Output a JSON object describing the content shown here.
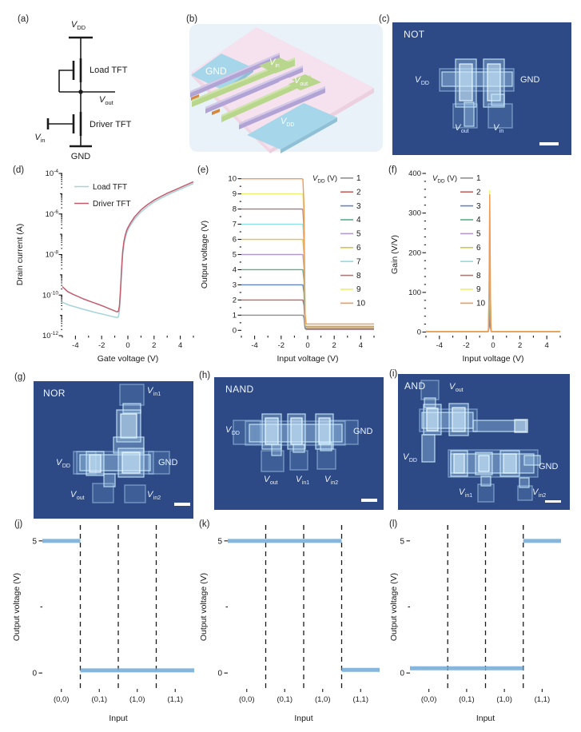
{
  "colors": {
    "micrograph_bg": "#2d4a87",
    "schematic_bg": "#e8f2f8",
    "substrate_pink": "#f6e2ee",
    "electrode_blue": "#a6d6e9",
    "electrode_green": "#b8d68c",
    "semiconductor_purple": "#b2a3d5",
    "step_line_blue": "#79aed7"
  },
  "labels": {
    "v": "V",
    "dd": "DD",
    "out": "out",
    "in": "in",
    "in1": "in1",
    "in2": "in2",
    "gnd": "GND"
  },
  "panels": {
    "a": {
      "tag": "(a)",
      "load": "Load TFT",
      "driver": "Driver TFT",
      "gnd": "GND"
    },
    "b": {
      "tag": "(b)",
      "gnd": "GND"
    },
    "c": {
      "tag": "(c)",
      "title": "NOT"
    },
    "d": {
      "tag": "(d)"
    },
    "e": {
      "tag": "(e)"
    },
    "f": {
      "tag": "(f)"
    },
    "g": {
      "tag": "(g)",
      "title": "NOR"
    },
    "h": {
      "tag": "(h)",
      "title": "NAND"
    },
    "i": {
      "tag": "(i)",
      "title": "AND"
    },
    "j": {
      "tag": "(j)"
    },
    "k": {
      "tag": "(k)"
    },
    "l": {
      "tag": "(l)"
    }
  },
  "chart_data": [
    {
      "id": "d",
      "type": "transfer",
      "xlabel": "Gate voltage (V)",
      "ylabel": "Drain current (A)",
      "xlim": [
        -5,
        5
      ],
      "xticks": [
        -4,
        -2,
        0,
        2,
        4
      ],
      "xminors": [
        -5,
        -3,
        -1,
        1,
        3,
        5
      ],
      "yscale": "log",
      "ylim_exp": [
        -12,
        -4
      ],
      "ytick_base": "10",
      "ytick_exps": [
        -4,
        -6,
        -8,
        -10,
        -12
      ],
      "legend_position": "top-left",
      "series": [
        {
          "name": "Load TFT",
          "color": "#a5d3da",
          "x": [
            -5,
            -4.6,
            -4.2,
            -3.8,
            -3.4,
            -3,
            -2.6,
            -2.2,
            -1.8,
            -1.4,
            -1.1,
            -0.9,
            -0.8,
            -0.72,
            -0.64,
            -0.56,
            -0.48,
            -0.4,
            -0.3,
            -0.2,
            -0.1,
            0,
            0.2,
            0.5,
            1,
            1.5,
            2,
            2.5,
            3,
            3.5,
            4,
            4.5,
            5
          ],
          "y": [
            4.5e-11,
            3.4e-11,
            2.8e-11,
            2.4e-11,
            2e-11,
            1.7e-11,
            1.45e-11,
            1.25e-11,
            1.1e-11,
            9.5e-12,
            8.5e-12,
            8e-12,
            7.8e-12,
            8.5e-12,
            1.8e-11,
            1.2e-10,
            1.3e-09,
            9e-09,
            3.2e-08,
            6.5e-08,
            1.1e-07,
            1.6e-07,
            2.8e-07,
            5.5e-07,
            1.25e-06,
            2.3e-06,
            3.9e-06,
            5.9e-06,
            8.6e-06,
            1.2e-05,
            1.65e-05,
            2.3e-05,
            3.2e-05
          ]
        },
        {
          "name": "Driver TFT",
          "color": "#c25c6e",
          "x": [
            -5,
            -4.6,
            -4.2,
            -3.8,
            -3.4,
            -3,
            -2.6,
            -2.2,
            -1.8,
            -1.4,
            -1.1,
            -0.9,
            -0.8,
            -0.72,
            -0.64,
            -0.56,
            -0.48,
            -0.4,
            -0.3,
            -0.2,
            -0.1,
            0,
            0.2,
            0.5,
            1,
            1.5,
            2,
            2.5,
            3,
            3.5,
            4,
            4.5,
            5
          ],
          "y": [
            2.6e-10,
            1.5e-10,
            1.1e-10,
            8.5e-11,
            6.5e-11,
            5.2e-11,
            4.2e-11,
            3.4e-11,
            2.7e-11,
            2.1e-11,
            1.75e-11,
            1.55e-11,
            1.5e-11,
            1.6e-11,
            3e-11,
            2e-10,
            2e-09,
            1.3e-08,
            4.5e-08,
            9e-08,
            1.5e-07,
            2.1e-07,
            3.6e-07,
            7e-07,
            1.6e-06,
            2.9e-06,
            4.8e-06,
            7.2e-06,
            1.05e-05,
            1.45e-05,
            2e-05,
            2.8e-05,
            3.9e-05
          ]
        }
      ]
    },
    {
      "id": "e",
      "type": "inverter",
      "xlabel": "Input voltage (V)",
      "ylabel": "Output voltage (V)",
      "xlim": [
        -5,
        5
      ],
      "xticks": [
        -4,
        -2,
        0,
        2,
        4
      ],
      "xminors": [
        -5,
        -3,
        -1,
        1,
        3,
        5
      ],
      "ylim": [
        -0.35,
        10.35
      ],
      "yticks": [
        0,
        1,
        2,
        3,
        4,
        5,
        6,
        7,
        8,
        9,
        10
      ],
      "legend_title": {
        "main": "V",
        "sub": "DD",
        "rest": " (V)"
      },
      "transition_x": -0.25,
      "series": [
        {
          "label": "1",
          "vdd": 1,
          "low": 0.06,
          "color": "#8f8f8f"
        },
        {
          "label": "2",
          "vdd": 2,
          "low": 0.08,
          "color": "#c9625f"
        },
        {
          "label": "3",
          "vdd": 3,
          "low": 0.1,
          "color": "#6286c2"
        },
        {
          "label": "4",
          "vdd": 4,
          "low": 0.13,
          "color": "#57b189"
        },
        {
          "label": "5",
          "vdd": 5,
          "low": 0.16,
          "color": "#b49bcd"
        },
        {
          "label": "6",
          "vdd": 6,
          "low": 0.19,
          "color": "#dfc247"
        },
        {
          "label": "7",
          "vdd": 7,
          "low": 0.22,
          "color": "#8fdfe2"
        },
        {
          "label": "8",
          "vdd": 8,
          "low": 0.26,
          "color": "#a87b78"
        },
        {
          "label": "9",
          "vdd": 9,
          "low": 0.3,
          "color": "#ecef6e"
        },
        {
          "label": "10",
          "vdd": 10,
          "low": 0.42,
          "color": "#ef9a55"
        }
      ]
    },
    {
      "id": "f",
      "type": "gain",
      "xlabel": "Input voltage (V)",
      "ylabel": "Gain (V/V)",
      "xlim": [
        -5,
        5
      ],
      "xticks": [
        -4,
        -2,
        0,
        2,
        4
      ],
      "xminors": [
        -5,
        -3,
        -1,
        1,
        3,
        5
      ],
      "ylim": [
        -9,
        400
      ],
      "yticks": [
        0,
        100,
        200,
        300,
        400
      ],
      "yminor_step": 20,
      "legend_title": {
        "main": "V",
        "sub": "DD",
        "rest": " (V)"
      },
      "peak_x": -0.25,
      "series": [
        {
          "label": "1",
          "peak": 35,
          "color": "#8f8f8f"
        },
        {
          "label": "2",
          "peak": 70,
          "color": "#c9625f"
        },
        {
          "label": "3",
          "peak": 105,
          "color": "#6286c2"
        },
        {
          "label": "4",
          "peak": 140,
          "color": "#57b189"
        },
        {
          "label": "5",
          "peak": 175,
          "color": "#b49bcd"
        },
        {
          "label": "6",
          "peak": 210,
          "color": "#dfc247"
        },
        {
          "label": "7",
          "peak": 245,
          "color": "#8fdfe2"
        },
        {
          "label": "8",
          "peak": 280,
          "color": "#a87b78"
        },
        {
          "label": "9",
          "peak": 355,
          "color": "#ecef6e"
        },
        {
          "label": "10",
          "peak": 345,
          "color": "#ef9a55"
        }
      ]
    },
    {
      "id": "j",
      "type": "step",
      "gate": "NOR",
      "xlabel": "Input",
      "ylabel": "Output voltage (V)",
      "categories": [
        "(0,0)",
        "(0,1)",
        "(1,0)",
        "(1,1)"
      ],
      "values": [
        5,
        0.1,
        0.1,
        0.1
      ],
      "yticks": [
        0,
        5
      ],
      "yminor": 2.5,
      "ylim": [
        -0.6,
        5.6
      ],
      "line_color": "#79aed7"
    },
    {
      "id": "k",
      "type": "step",
      "gate": "NAND",
      "xlabel": "Input",
      "ylabel": "Output voltage (V)",
      "categories": [
        "(0,0)",
        "(0,1)",
        "(1,0)",
        "(1,1)"
      ],
      "values": [
        5,
        5,
        5,
        0.12
      ],
      "yticks": [
        0,
        5
      ],
      "yminor": 2.5,
      "ylim": [
        -0.6,
        5.6
      ],
      "line_color": "#79aed7"
    },
    {
      "id": "l",
      "type": "step",
      "gate": "AND",
      "xlabel": "Input",
      "ylabel": "Output voltage (V)",
      "categories": [
        "(0,0)",
        "(0,1)",
        "(1,0)",
        "(1,1)"
      ],
      "values": [
        0.18,
        0.18,
        0.18,
        5
      ],
      "yticks": [
        0,
        5
      ],
      "yminor": 2.5,
      "ylim": [
        -0.6,
        5.6
      ],
      "line_color": "#79aed7"
    }
  ]
}
